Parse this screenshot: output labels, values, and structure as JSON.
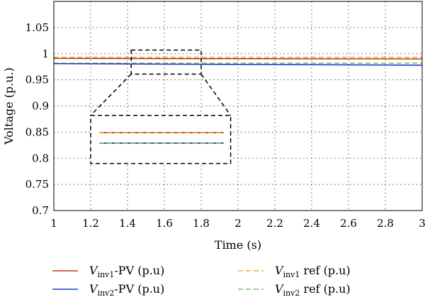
{
  "chart_data": {
    "type": "line",
    "xlabel": "Time (s)",
    "ylabel": "Voltage (p.u.)",
    "xlim": [
      1,
      3
    ],
    "ylim": [
      0.7,
      1.1
    ],
    "xticks": [
      1,
      1.2,
      1.4,
      1.6,
      1.8,
      2,
      2.2,
      2.4,
      2.6,
      2.8,
      3
    ],
    "xtick_labels": [
      "1",
      "1.2",
      "1.4",
      "1.6",
      "1.8",
      "2",
      "2.2",
      "2.4",
      "2.6",
      "2.8",
      "3"
    ],
    "yticks": [
      0.7,
      0.75,
      0.8,
      0.85,
      0.9,
      0.95,
      1,
      1.05
    ],
    "ytick_labels": [
      "0.7",
      "0.75",
      "0.8",
      "0.85",
      "0.9",
      "0.95",
      "1",
      "1.05"
    ],
    "grid": true,
    "legend_position": "bottom",
    "series": [
      {
        "name": "V_inv1-PV (p.u)",
        "base": "V",
        "sub": "inv1",
        "suffix": "-PV (p.u)",
        "color": "#c0392b",
        "dash": false,
        "x": [
          1,
          3
        ],
        "y": [
          0.991,
          0.99
        ]
      },
      {
        "name": "V_inv2-PV (p.u)",
        "base": "V",
        "sub": "inv2",
        "suffix": "-PV (p.u)",
        "color": "#1f3fbf",
        "dash": false,
        "x": [
          1,
          3
        ],
        "y": [
          0.981,
          0.978
        ]
      },
      {
        "name": "V_inv1 ref (p.u)",
        "base": "V",
        "sub": "inv1",
        "suffix": " ref (p.u)",
        "color": "#f0a830",
        "dash": true,
        "x": [
          1,
          3
        ],
        "y": [
          0.993,
          0.993
        ]
      },
      {
        "name": "V_inv2 ref (p.u)",
        "base": "V",
        "sub": "inv2",
        "suffix": " ref (p.u)",
        "color": "#7fc06f",
        "dash": true,
        "x": [
          1,
          3
        ],
        "y": [
          0.982,
          0.982
        ]
      }
    ],
    "zoom_inset": {
      "source_x": [
        1.42,
        1.8
      ],
      "source_y": [
        0.961,
        1.007
      ],
      "inset_x": [
        1.2,
        1.96
      ],
      "inset_y": [
        0.79,
        0.882
      ],
      "inset_lines_y": {
        "inv1": 0.849,
        "inv2": 0.829
      }
    }
  }
}
